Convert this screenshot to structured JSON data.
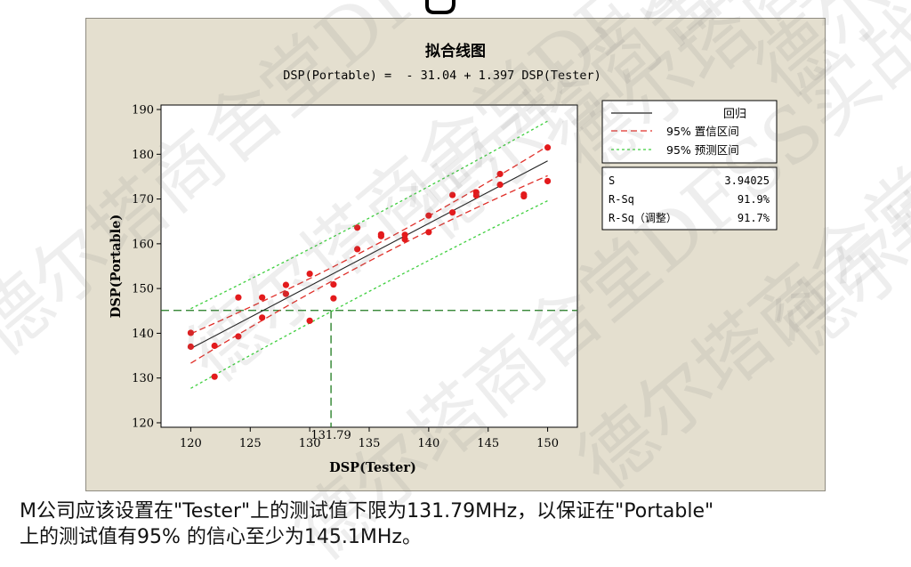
{
  "watermark": {
    "text": "德尔塔商舍堂DFSS实战黑带"
  },
  "chart": {
    "title": "拟合线图",
    "equation": "DSP(Portable) =  - 31.04 + 1.397 DSP(Tester)",
    "xlabel": "DSP(Tester)",
    "ylabel": "DSP(Portable)",
    "marker_label": "131.79",
    "legend": {
      "regression": "回归",
      "confidence": "95% 置信区间",
      "prediction": "95% 预测区间"
    },
    "stats": [
      {
        "label": "S",
        "value": "3.94025"
      },
      {
        "label": "R-Sq",
        "value": "91.9%"
      },
      {
        "label": "R-Sq（调整）",
        "value": "91.7%"
      }
    ]
  },
  "caption": {
    "line1": "M公司应该设置在\"Tester\"上的测试值下限为131.79MHz，以保证在\"Portable\"",
    "line2": "上的测试值有95% 的信心至少为145.1MHz。"
  },
  "colors": {
    "panel_bg": "#e4dfcf",
    "points": "#e31a1c",
    "regression": "#222222",
    "confidence": "#e0302a",
    "prediction": "#3fcf3f",
    "reference": "#1e7a1e"
  },
  "chart_data": {
    "type": "scatter",
    "title": "拟合线图",
    "xlabel": "DSP(Tester)",
    "ylabel": "DSP(Portable)",
    "xlim": [
      117.5,
      152.5
    ],
    "ylim": [
      119,
      191
    ],
    "xticks": [
      120,
      125,
      130,
      135,
      140,
      145,
      150
    ],
    "yticks": [
      120,
      130,
      140,
      150,
      160,
      170,
      180,
      190
    ],
    "points": [
      [
        120,
        140.1
      ],
      [
        120,
        137.0
      ],
      [
        122,
        137.2
      ],
      [
        122,
        130.3
      ],
      [
        124,
        148.0
      ],
      [
        124,
        139.3
      ],
      [
        126,
        148.0
      ],
      [
        126,
        143.5
      ],
      [
        128,
        150.8
      ],
      [
        128,
        148.8
      ],
      [
        130,
        153.3
      ],
      [
        130,
        142.8
      ],
      [
        132,
        150.9
      ],
      [
        132,
        147.8
      ],
      [
        134,
        163.6
      ],
      [
        134,
        158.8
      ],
      [
        136,
        162.1
      ],
      [
        136,
        161.7
      ],
      [
        138,
        162.0
      ],
      [
        138,
        161.0
      ],
      [
        140,
        166.3
      ],
      [
        140,
        162.6
      ],
      [
        142,
        170.9
      ],
      [
        142,
        167.0
      ],
      [
        144,
        171.5
      ],
      [
        144,
        170.8
      ],
      [
        146,
        175.6
      ],
      [
        146,
        173.2
      ],
      [
        148,
        171.0
      ],
      [
        148,
        170.6
      ],
      [
        150,
        181.5
      ],
      [
        150,
        174.0
      ]
    ],
    "regression": {
      "intercept": -31.04,
      "slope": 1.397
    },
    "confidence_half_width": [
      3.3,
      1.45,
      3.3
    ],
    "prediction_half_width": [
      8.9,
      8.2,
      8.9
    ],
    "band_x": [
      120,
      135,
      150
    ],
    "reference": {
      "x": 131.79,
      "y": 145.1
    },
    "stats": {
      "S": 3.94025,
      "R-Sq": "91.9%",
      "R-Sq(adj)": "91.7%"
    },
    "legend_position": "right",
    "grid": false
  }
}
